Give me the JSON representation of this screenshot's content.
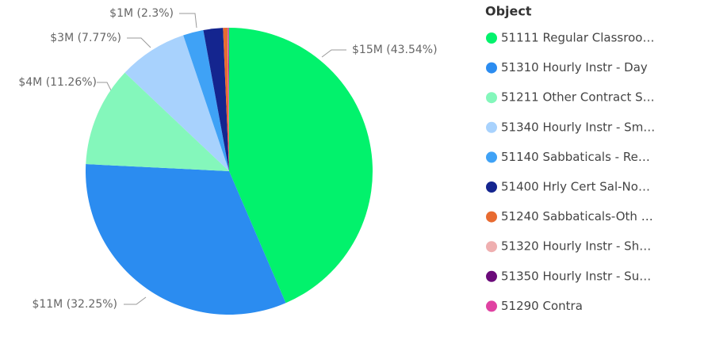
{
  "chart_data": {
    "type": "pie",
    "legend_title": "Object",
    "legend_position": "right",
    "categories": [
      "51111 Regular Classroo…",
      "51310 Hourly Instr - Day",
      "51211 Other Contract S…",
      "51340 Hourly Instr - Sm…",
      "51140 Sabbaticals - Re…",
      "51400 Hrly Cert Sal-No…",
      "51240 Sabbaticals-Oth …",
      "51320 Hourly Instr - Sh…",
      "51350 Hourly Instr - Su…",
      "51290 Contra"
    ],
    "values": [
      43.54,
      32.25,
      11.26,
      7.77,
      2.3,
      2.2,
      0.5,
      0.06,
      0.06,
      0.06
    ],
    "value_labels": [
      "$15M (43.54%)",
      "$11M (32.25%)",
      "$4M (11.26%)",
      "$3M (7.77%)",
      "$1M (2.3%)",
      null,
      null,
      null,
      null,
      null
    ],
    "colors": [
      "#02f26c",
      "#2b8cf0",
      "#84f7bb",
      "#a8d2fd",
      "#3fa2f6",
      "#14258f",
      "#e86b31",
      "#efafb0",
      "#6b0b7a",
      "#e042a2"
    ]
  }
}
